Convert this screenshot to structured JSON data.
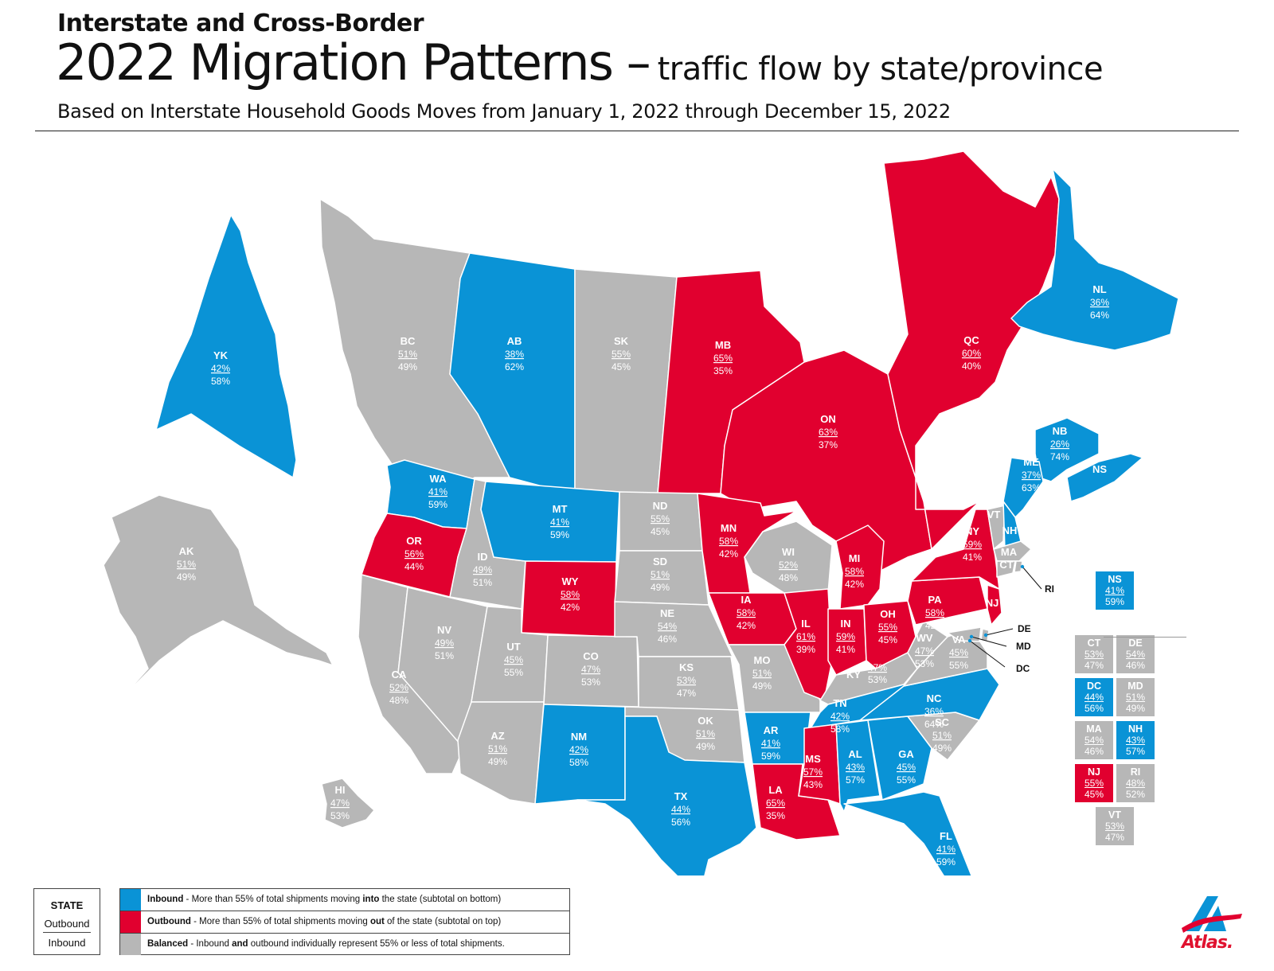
{
  "header": {
    "kicker": "Interstate and Cross-Border",
    "title": "2022 Migration Patterns –",
    "subtitle": "traffic flow by state/province",
    "basis": "Based on Interstate Household Goods Moves from January 1, 2022 through December 15, 2022"
  },
  "colors": {
    "inbound": "#0a93d6",
    "outbound": "#e1002f",
    "balanced": "#b7b7b7",
    "water": "#ffffff"
  },
  "regions": {
    "YK": {
      "code": "YK",
      "outbound": "42%",
      "inbound": "58%",
      "category": "inbound"
    },
    "BC": {
      "code": "BC",
      "outbound": "51%",
      "inbound": "49%",
      "category": "balanced"
    },
    "AB": {
      "code": "AB",
      "outbound": "38%",
      "inbound": "62%",
      "category": "inbound"
    },
    "SK": {
      "code": "SK",
      "outbound": "55%",
      "inbound": "45%",
      "category": "balanced"
    },
    "MB": {
      "code": "MB",
      "outbound": "65%",
      "inbound": "35%",
      "category": "outbound"
    },
    "ON": {
      "code": "ON",
      "outbound": "63%",
      "inbound": "37%",
      "category": "outbound"
    },
    "QC": {
      "code": "QC",
      "outbound": "60%",
      "inbound": "40%",
      "category": "outbound"
    },
    "NL": {
      "code": "NL",
      "outbound": "36%",
      "inbound": "64%",
      "category": "inbound"
    },
    "NB": {
      "code": "NB",
      "outbound": "26%",
      "inbound": "74%",
      "category": "inbound"
    },
    "NS": {
      "code": "NS",
      "outbound": "41%",
      "inbound": "59%",
      "category": "inbound"
    },
    "AK": {
      "code": "AK",
      "outbound": "51%",
      "inbound": "49%",
      "category": "balanced"
    },
    "HI": {
      "code": "HI",
      "outbound": "47%",
      "inbound": "53%",
      "category": "balanced"
    },
    "WA": {
      "code": "WA",
      "outbound": "41%",
      "inbound": "59%",
      "category": "inbound"
    },
    "OR": {
      "code": "OR",
      "outbound": "56%",
      "inbound": "44%",
      "category": "outbound"
    },
    "CA": {
      "code": "CA",
      "outbound": "52%",
      "inbound": "48%",
      "category": "balanced"
    },
    "ID": {
      "code": "ID",
      "outbound": "49%",
      "inbound": "51%",
      "category": "balanced"
    },
    "NV": {
      "code": "NV",
      "outbound": "49%",
      "inbound": "51%",
      "category": "balanced"
    },
    "MT": {
      "code": "MT",
      "outbound": "41%",
      "inbound": "59%",
      "category": "inbound"
    },
    "WY": {
      "code": "WY",
      "outbound": "58%",
      "inbound": "42%",
      "category": "outbound"
    },
    "UT": {
      "code": "UT",
      "outbound": "45%",
      "inbound": "55%",
      "category": "balanced"
    },
    "AZ": {
      "code": "AZ",
      "outbound": "51%",
      "inbound": "49%",
      "category": "balanced"
    },
    "CO": {
      "code": "CO",
      "outbound": "47%",
      "inbound": "53%",
      "category": "balanced"
    },
    "NM": {
      "code": "NM",
      "outbound": "42%",
      "inbound": "58%",
      "category": "inbound"
    },
    "ND": {
      "code": "ND",
      "outbound": "55%",
      "inbound": "45%",
      "category": "balanced"
    },
    "SD": {
      "code": "SD",
      "outbound": "51%",
      "inbound": "49%",
      "category": "balanced"
    },
    "NE": {
      "code": "NE",
      "outbound": "54%",
      "inbound": "46%",
      "category": "balanced"
    },
    "KS": {
      "code": "KS",
      "outbound": "53%",
      "inbound": "47%",
      "category": "balanced"
    },
    "OK": {
      "code": "OK",
      "outbound": "51%",
      "inbound": "49%",
      "category": "balanced"
    },
    "TX": {
      "code": "TX",
      "outbound": "44%",
      "inbound": "56%",
      "category": "inbound"
    },
    "MN": {
      "code": "MN",
      "outbound": "58%",
      "inbound": "42%",
      "category": "outbound"
    },
    "IA": {
      "code": "IA",
      "outbound": "58%",
      "inbound": "42%",
      "category": "outbound"
    },
    "MO": {
      "code": "MO",
      "outbound": "51%",
      "inbound": "49%",
      "category": "balanced"
    },
    "AR": {
      "code": "AR",
      "outbound": "41%",
      "inbound": "59%",
      "category": "inbound"
    },
    "LA": {
      "code": "LA",
      "outbound": "65%",
      "inbound": "35%",
      "category": "outbound"
    },
    "WI": {
      "code": "WI",
      "outbound": "52%",
      "inbound": "48%",
      "category": "balanced"
    },
    "IL": {
      "code": "IL",
      "outbound": "61%",
      "inbound": "39%",
      "category": "outbound"
    },
    "MI": {
      "code": "MI",
      "outbound": "58%",
      "inbound": "42%",
      "category": "outbound"
    },
    "IN": {
      "code": "IN",
      "outbound": "59%",
      "inbound": "41%",
      "category": "outbound"
    },
    "OH": {
      "code": "OH",
      "outbound": "55%",
      "inbound": "45%",
      "category": "outbound"
    },
    "KY": {
      "code": "KY",
      "outbound": "47%",
      "inbound": "53%",
      "category": "balanced"
    },
    "TN": {
      "code": "TN",
      "outbound": "42%",
      "inbound": "58%",
      "category": "inbound"
    },
    "MS": {
      "code": "MS",
      "outbound": "57%",
      "inbound": "43%",
      "category": "outbound"
    },
    "AL": {
      "code": "AL",
      "outbound": "43%",
      "inbound": "57%",
      "category": "inbound"
    },
    "GA": {
      "code": "GA",
      "outbound": "45%",
      "inbound": "55%",
      "category": "inbound"
    },
    "FL": {
      "code": "FL",
      "outbound": "41%",
      "inbound": "59%",
      "category": "inbound"
    },
    "SC": {
      "code": "SC",
      "outbound": "51%",
      "inbound": "49%",
      "category": "balanced"
    },
    "NC": {
      "code": "NC",
      "outbound": "36%",
      "inbound": "64%",
      "category": "inbound"
    },
    "VA": {
      "code": "VA",
      "outbound": "45%",
      "inbound": "55%",
      "category": "balanced"
    },
    "WV": {
      "code": "WV",
      "outbound": "47%",
      "inbound": "53%",
      "category": "balanced"
    },
    "PA": {
      "code": "PA",
      "outbound": "58%",
      "inbound": "42%",
      "category": "outbound"
    },
    "NY": {
      "code": "NY",
      "outbound": "59%",
      "inbound": "41%",
      "category": "outbound"
    },
    "NJ": {
      "code": "NJ",
      "outbound": "55%",
      "inbound": "45%",
      "category": "outbound"
    },
    "ME": {
      "code": "ME",
      "outbound": "37%",
      "inbound": "63%",
      "category": "inbound"
    },
    "VT": {
      "code": "VT",
      "outbound": "53%",
      "inbound": "47%",
      "category": "balanced"
    },
    "NH": {
      "code": "NH",
      "outbound": "43%",
      "inbound": "57%",
      "category": "inbound"
    },
    "MA": {
      "code": "MA",
      "outbound": "54%",
      "inbound": "46%",
      "category": "balanced"
    },
    "CT": {
      "code": "CT",
      "outbound": "53%",
      "inbound": "47%",
      "category": "balanced"
    },
    "RI": {
      "code": "RI",
      "outbound": "48%",
      "inbound": "52%",
      "category": "balanced"
    },
    "DE": {
      "code": "DE",
      "outbound": "54%",
      "inbound": "46%",
      "category": "balanced"
    },
    "MD": {
      "code": "MD",
      "outbound": "51%",
      "inbound": "49%",
      "category": "balanced"
    },
    "DC": {
      "code": "DC",
      "outbound": "44%",
      "inbound": "56%",
      "category": "inbound"
    }
  },
  "callouts": {
    "RI": "RI",
    "DE": "DE",
    "MD": "MD",
    "DC": "DC"
  },
  "legend": {
    "key_title": "STATE",
    "key_outbound": "Outbound",
    "key_inbound": "Inbound",
    "inbound_term": "Inbound",
    "inbound_text_a": " - More than 55% of total shipments moving ",
    "inbound_bold": "into",
    "inbound_text_b": " the state (subtotal on bottom)",
    "outbound_term": "Outbound",
    "outbound_text_a": " - More than 55% of total shipments moving ",
    "outbound_bold": "out",
    "outbound_text_b": " of the state (subtotal on top)",
    "balanced_term": "Balanced",
    "balanced_text_a": " - Inbound ",
    "balanced_bold": "and",
    "balanced_text_b": " outbound individually represent 55% or less of total shipments."
  },
  "logo": {
    "wordmark": "Atlas."
  }
}
